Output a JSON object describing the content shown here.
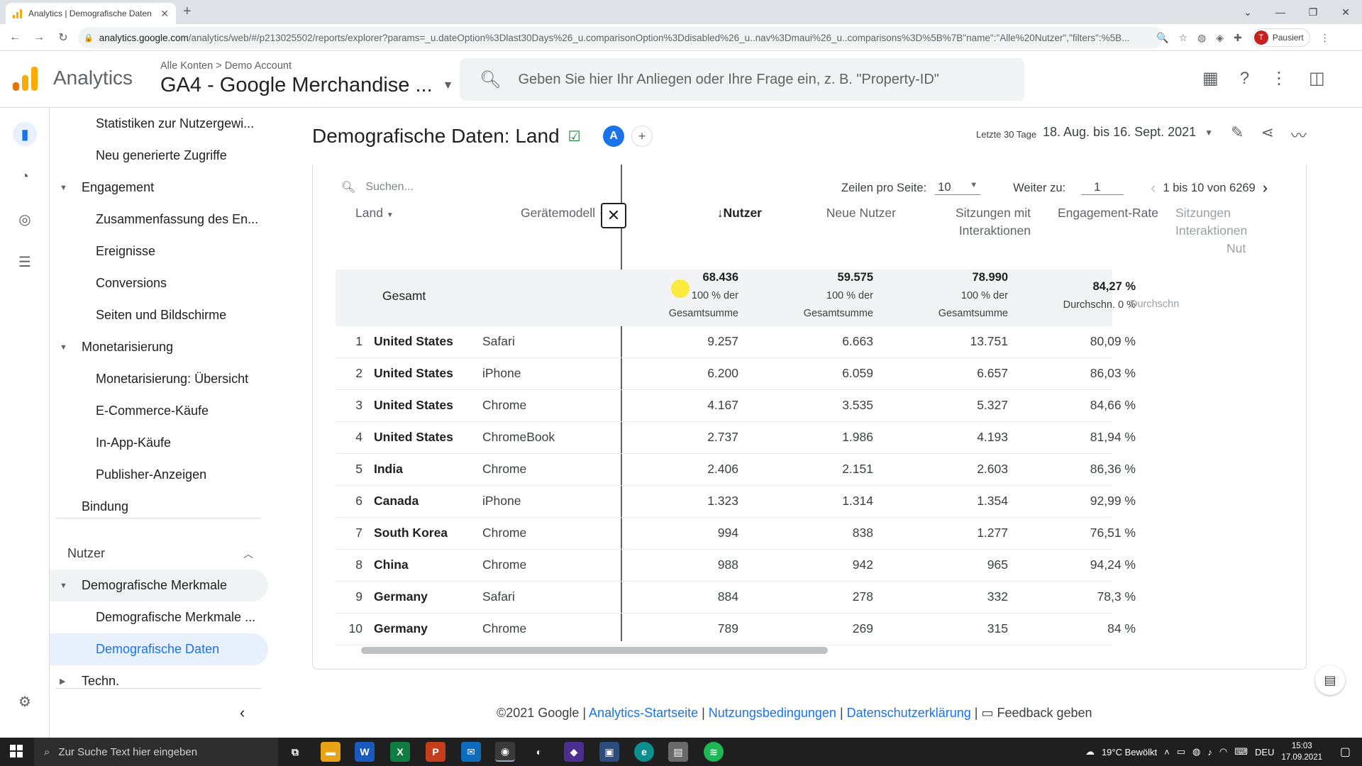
{
  "browser": {
    "tab_title": "Analytics | Demografische Daten",
    "url_main": "analytics.google.com",
    "url_rest": "/analytics/web/#/p213025502/reports/explorer?params=_u.dateOption%3Dlast30Days%26_u.comparisonOption%3Ddisabled%26_u..nav%3Dmaui%26_u..comparisons%3D%5B%7B\"name\":\"Alle%20Nutzer\",\"filters\":%5B...",
    "profile_initial": "T",
    "profile_label": "Pausiert"
  },
  "header": {
    "app_name": "Analytics",
    "breadcrumb": "Alle Konten > Demo Account",
    "property": "GA4 - Google Merchandise ...",
    "search_placeholder": "Geben Sie hier Ihr Anliegen oder Ihre Frage ein, z. B. \"Property-ID\""
  },
  "nav": {
    "items": [
      {
        "label": "Statistiken zur Nutzergewi...",
        "level": 2
      },
      {
        "label": "Neu generierte Zugriffe",
        "level": 2
      },
      {
        "label": "Engagement",
        "level": 1,
        "expanded": true
      },
      {
        "label": "Zusammenfassung des En...",
        "level": 2
      },
      {
        "label": "Ereignisse",
        "level": 2
      },
      {
        "label": "Conversions",
        "level": 2
      },
      {
        "label": "Seiten und Bildschirme",
        "level": 2
      },
      {
        "label": "Monetarisierung",
        "level": 1,
        "expanded": true
      },
      {
        "label": "Monetarisierung: Übersicht",
        "level": 2
      },
      {
        "label": "E-Commerce-Käufe",
        "level": 2
      },
      {
        "label": "In-App-Käufe",
        "level": 2
      },
      {
        "label": "Publisher-Anzeigen",
        "level": 2
      },
      {
        "label": "Bindung",
        "level": 1
      }
    ],
    "section_nutzer": "Nutzer",
    "demografische_merkmale": "Demografische Merkmale",
    "demografische_merkmale_sub": "Demografische Merkmale ...",
    "demografische_daten": "Demografische Daten",
    "techn": "Techn."
  },
  "page": {
    "title": "Demografische Daten: Land",
    "comparison_avatar": "A",
    "date_label": "Letzte 30 Tage",
    "date_range": "18. Aug. bis 16. Sept. 2021"
  },
  "table": {
    "search_placeholder": "Suchen...",
    "rows_per_page_label": "Zeilen pro Seite:",
    "rows_per_page": "10",
    "goto_label": "Weiter zu:",
    "goto_value": "1",
    "range_text": "1 bis 10 von 6269",
    "headers": {
      "land": "Land",
      "geraet": "Gerätemodell",
      "nutzer": "Nutzer",
      "neue_nutzer": "Neue Nutzer",
      "sitzungen_l1": "Sitzungen mit",
      "sitzungen_l2": "Interaktionen",
      "engagement": "Engagement-Rate",
      "cut_l1": "Sitzungen",
      "cut_l2": "Interaktionen",
      "cut_l3": "Nut"
    },
    "totals": {
      "label": "Gesamt",
      "nutzer": "68.436",
      "neue_nutzer": "59.575",
      "sitzungen": "78.990",
      "engagement": "84,27 %",
      "pct_l1": "100 % der",
      "pct_l2": "Gesamtsumme",
      "avg": "Durchschn. 0 %",
      "cut_avg": "Durchschn"
    },
    "rows": [
      {
        "idx": "1",
        "land": "United States",
        "geraet": "Safari",
        "nutzer": "9.257",
        "neue": "6.663",
        "sitz": "13.751",
        "eng": "80,09 %"
      },
      {
        "idx": "2",
        "land": "United States",
        "geraet": "iPhone",
        "nutzer": "6.200",
        "neue": "6.059",
        "sitz": "6.657",
        "eng": "86,03 %"
      },
      {
        "idx": "3",
        "land": "United States",
        "geraet": "Chrome",
        "nutzer": "4.167",
        "neue": "3.535",
        "sitz": "5.327",
        "eng": "84,66 %"
      },
      {
        "idx": "4",
        "land": "United States",
        "geraet": "ChromeBook",
        "nutzer": "2.737",
        "neue": "1.986",
        "sitz": "4.193",
        "eng": "81,94 %"
      },
      {
        "idx": "5",
        "land": "India",
        "geraet": "Chrome",
        "nutzer": "2.406",
        "neue": "2.151",
        "sitz": "2.603",
        "eng": "86,36 %"
      },
      {
        "idx": "6",
        "land": "Canada",
        "geraet": "iPhone",
        "nutzer": "1.323",
        "neue": "1.314",
        "sitz": "1.354",
        "eng": "92,99 %"
      },
      {
        "idx": "7",
        "land": "South Korea",
        "geraet": "Chrome",
        "nutzer": "994",
        "neue": "838",
        "sitz": "1.277",
        "eng": "76,51 %"
      },
      {
        "idx": "8",
        "land": "China",
        "geraet": "Chrome",
        "nutzer": "988",
        "neue": "942",
        "sitz": "965",
        "eng": "94,24 %"
      },
      {
        "idx": "9",
        "land": "Germany",
        "geraet": "Safari",
        "nutzer": "884",
        "neue": "278",
        "sitz": "332",
        "eng": "78,3 %"
      },
      {
        "idx": "10",
        "land": "Germany",
        "geraet": "Chrome",
        "nutzer": "789",
        "neue": "269",
        "sitz": "315",
        "eng": "84 %"
      }
    ]
  },
  "footer": {
    "copyright": "©2021 Google |",
    "link1": "Analytics-Startseite",
    "link2": "Nutzungsbedingungen",
    "link3": "Datenschutzerklärung",
    "feedback": "Feedback geben"
  },
  "taskbar": {
    "search_placeholder": "Zur Suche Text hier eingeben",
    "weather": "19°C Bewölkt",
    "lang": "DEU",
    "time": "15:03",
    "date": "17.09.2021"
  },
  "colors": {
    "accent": "#1a73e8",
    "selected_bg": "#e8f0fe",
    "logo_orange": "#f9ab00",
    "logo_dark": "#e37400"
  }
}
